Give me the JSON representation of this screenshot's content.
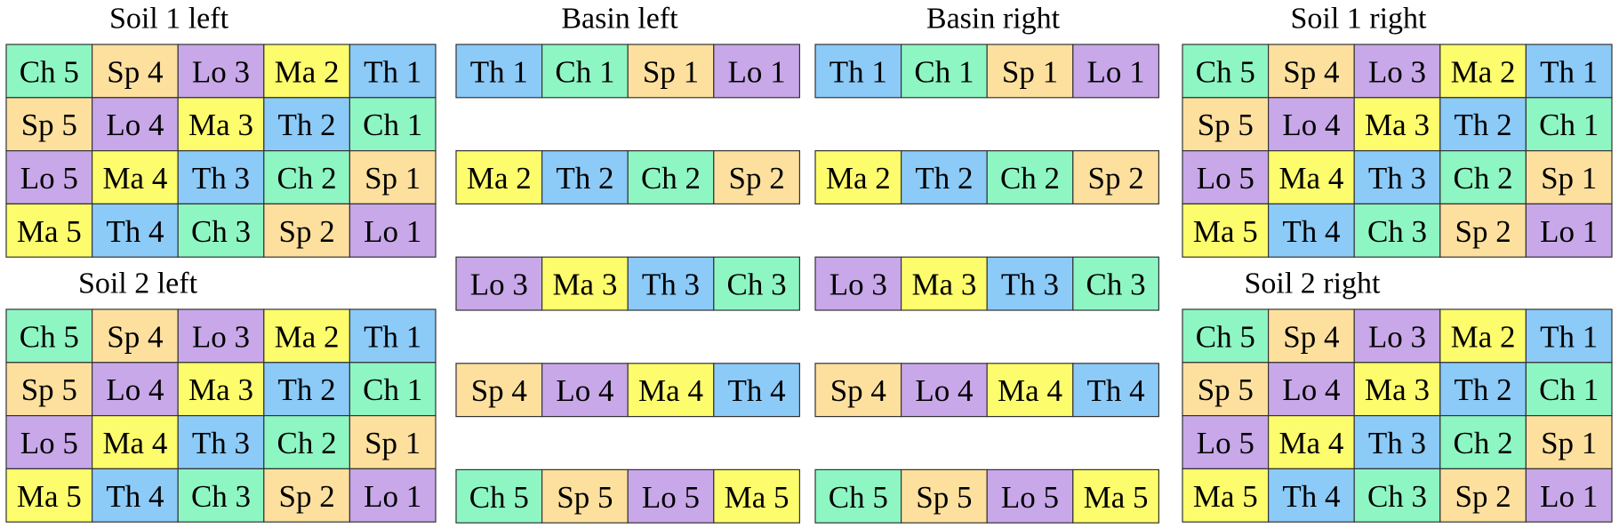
{
  "colors": {
    "Ch": "#8ef6c3",
    "Sp": "#fde09e",
    "Lo": "#c8a8e8",
    "Ma": "#fdfc6c",
    "Th": "#8ccaf8"
  },
  "groups": [
    {
      "title": "Soil 1 left",
      "rows": [
        [
          "Ch 5",
          "Sp 4",
          "Lo 3",
          "Ma 2",
          "Th 1"
        ],
        [
          "Sp 5",
          "Lo 4",
          "Ma 3",
          "Th 2",
          "Ch 1"
        ],
        [
          "Lo 5",
          "Ma 4",
          "Th 3",
          "Ch 2",
          "Sp 1"
        ],
        [
          "Ma 5",
          "Th 4",
          "Ch 3",
          "Sp 2",
          "Lo 1"
        ]
      ]
    },
    {
      "title": "Soil 2 left",
      "rows": [
        [
          "Ch 5",
          "Sp 4",
          "Lo 3",
          "Ma 2",
          "Th 1"
        ],
        [
          "Sp 5",
          "Lo 4",
          "Ma 3",
          "Th 2",
          "Ch 1"
        ],
        [
          "Lo 5",
          "Ma 4",
          "Th 3",
          "Ch 2",
          "Sp 1"
        ],
        [
          "Ma 5",
          "Th 4",
          "Ch 3",
          "Sp 2",
          "Lo 1"
        ]
      ]
    },
    {
      "title": "Basin left",
      "rows": [
        [
          "Th 1",
          "Ch 1",
          "Sp 1",
          "Lo 1"
        ],
        [
          "Ma 2",
          "Th 2",
          "Ch 2",
          "Sp 2"
        ],
        [
          "Lo 3",
          "Ma 3",
          "Th 3",
          "Ch 3"
        ],
        [
          "Sp 4",
          "Lo 4",
          "Ma 4",
          "Th 4"
        ],
        [
          "Ch 5",
          "Sp 5",
          "Lo 5",
          "Ma 5"
        ]
      ]
    },
    {
      "title": "Basin right",
      "rows": [
        [
          "Th 1",
          "Ch 1",
          "Sp 1",
          "Lo 1"
        ],
        [
          "Ma 2",
          "Th 2",
          "Ch 2",
          "Sp 2"
        ],
        [
          "Lo 3",
          "Ma 3",
          "Th 3",
          "Ch 3"
        ],
        [
          "Sp 4",
          "Lo 4",
          "Ma 4",
          "Th 4"
        ],
        [
          "Ch 5",
          "Sp 5",
          "Lo 5",
          "Ma 5"
        ]
      ]
    },
    {
      "title": "Soil 1 right",
      "rows": [
        [
          "Ch 5",
          "Sp 4",
          "Lo 3",
          "Ma 2",
          "Th 1"
        ],
        [
          "Sp 5",
          "Lo 4",
          "Ma 3",
          "Th 2",
          "Ch 1"
        ],
        [
          "Lo 5",
          "Ma 4",
          "Th 3",
          "Ch 2",
          "Sp 1"
        ],
        [
          "Ma 5",
          "Th 4",
          "Ch 3",
          "Sp 2",
          "Lo 1"
        ]
      ]
    },
    {
      "title": "Soil 2 right",
      "rows": [
        [
          "Ch 5",
          "Sp 4",
          "Lo 3",
          "Ma 2",
          "Th 1"
        ],
        [
          "Sp 5",
          "Lo 4",
          "Ma 3",
          "Th 2",
          "Ch 1"
        ],
        [
          "Lo 5",
          "Ma 4",
          "Th 3",
          "Ch 2",
          "Sp 1"
        ],
        [
          "Ma 5",
          "Th 4",
          "Ch 3",
          "Sp 2",
          "Lo 1"
        ]
      ]
    }
  ]
}
